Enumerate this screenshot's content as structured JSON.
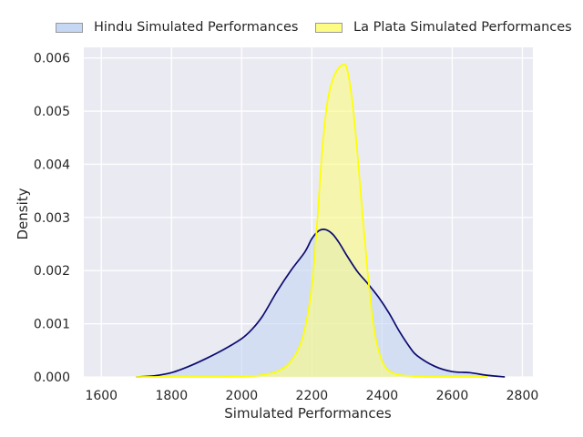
{
  "legend": {
    "hindu_label": "Hindu Simulated Performances",
    "laplata_label": "La Plata Simulated Performances",
    "hindu_color": "#c5d7f2",
    "laplata_color": "#fcfc85"
  },
  "chart_data": {
    "type": "area",
    "title": "",
    "xlabel": "Simulated Performances",
    "ylabel": "Density",
    "xlim": [
      1550,
      2830
    ],
    "ylim": [
      0,
      0.0062
    ],
    "xticks": [
      1600,
      1800,
      2000,
      2200,
      2400,
      2600,
      2800
    ],
    "yticks": [
      0.0,
      0.001,
      0.002,
      0.003,
      0.004,
      0.005,
      0.006
    ],
    "xtick_labels": [
      "1600",
      "1800",
      "2000",
      "2200",
      "2400",
      "2600",
      "2800"
    ],
    "ytick_labels": [
      "0.000",
      "0.001",
      "0.002",
      "0.003",
      "0.004",
      "0.005",
      "0.006"
    ],
    "grid": true,
    "legend_position": "top, outside plot",
    "colors": {
      "background": "#eaeaf2",
      "grid": "#ffffff",
      "hindu_line": "#0b0b70",
      "laplata_line": "#ffff00"
    },
    "series": [
      {
        "name": "Hindu Simulated Performances",
        "x": [
          1700,
          1750,
          1800,
          1850,
          1900,
          1950,
          2000,
          2030,
          2060,
          2100,
          2140,
          2180,
          2200,
          2220,
          2240,
          2260,
          2280,
          2300,
          2330,
          2360,
          2390,
          2420,
          2450,
          2480,
          2500,
          2550,
          2600,
          2650,
          2700,
          2750
        ],
        "y": [
          0.0,
          2e-05,
          8e-05,
          0.0002,
          0.00035,
          0.00052,
          0.00072,
          0.0009,
          0.00115,
          0.0016,
          0.002,
          0.00235,
          0.0026,
          0.00275,
          0.00277,
          0.00268,
          0.0025,
          0.00228,
          0.00198,
          0.00175,
          0.0015,
          0.0012,
          0.00085,
          0.00055,
          0.0004,
          0.0002,
          0.0001,
          8e-05,
          3e-05,
          0.0
        ]
      },
      {
        "name": "La Plata Simulated Performances",
        "x": [
          1700,
          1750,
          1800,
          1850,
          1900,
          1950,
          2000,
          2040,
          2070,
          2100,
          2130,
          2160,
          2180,
          2200,
          2215,
          2230,
          2245,
          2260,
          2275,
          2290,
          2300,
          2315,
          2330,
          2345,
          2360,
          2375,
          2390,
          2410,
          2440,
          2480,
          2520,
          2560,
          2620,
          2700
        ],
        "y": [
          0.0,
          0.0,
          0.0,
          0.0,
          0.0,
          0.0,
          1e-05,
          2e-05,
          5e-05,
          0.0001,
          0.00022,
          0.0005,
          0.0009,
          0.0017,
          0.0029,
          0.0043,
          0.0052,
          0.0056,
          0.0058,
          0.00587,
          0.0058,
          0.0052,
          0.0042,
          0.003,
          0.0019,
          0.001,
          0.0005,
          0.00018,
          5e-05,
          2e-05,
          0.0,
          0.0,
          0.0,
          0.0
        ]
      }
    ]
  }
}
